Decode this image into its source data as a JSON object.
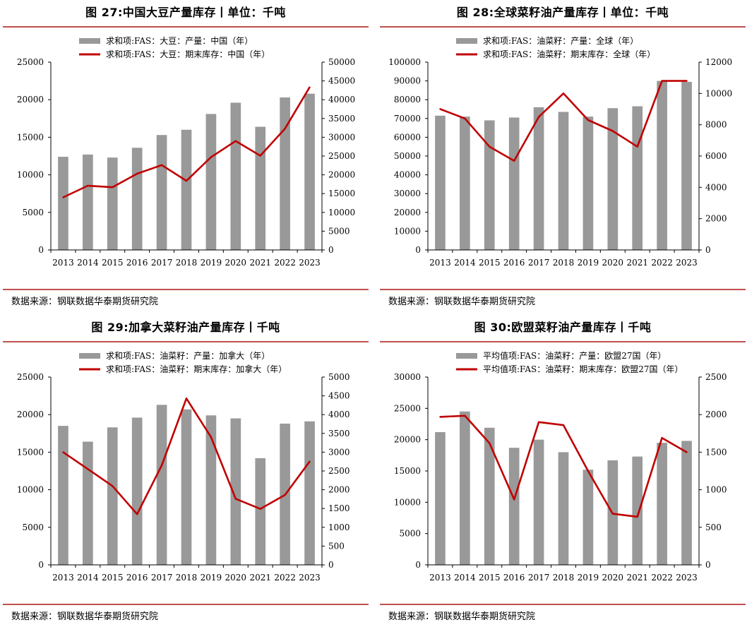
{
  "colors": {
    "bar": "#999999",
    "line": "#c00000",
    "rule": "#c0504d",
    "axis": "#000000"
  },
  "panels": [
    {
      "title": "图 27:中国大豆产量库存丨单位：千吨",
      "source": "数据来源：钢联数据华泰期货研究院",
      "chart_data": {
        "type": "bar+line",
        "categories": [
          "2013",
          "2014",
          "2015",
          "2016",
          "2017",
          "2018",
          "2019",
          "2020",
          "2021",
          "2022",
          "2023"
        ],
        "series": [
          {
            "name": "求和项:FAS：大豆：产量：中国（年）",
            "kind": "bar",
            "axis": "left",
            "values": [
              12400,
              12700,
              12300,
              13600,
              15300,
              16000,
              18100,
              19600,
              16400,
              20300,
              20800
            ]
          },
          {
            "name": "求和项:FAS：大豆：期末库存：中国（年）",
            "kind": "line",
            "axis": "right",
            "values": [
              14000,
              17100,
              16700,
              20300,
              22600,
              18400,
              24700,
              29000,
              25100,
              32300,
              43300
            ]
          }
        ],
        "ylim_left": [
          0,
          25000
        ],
        "ystep_left": 5000,
        "ylim_right": [
          0,
          50000
        ],
        "ystep_right": 5000
      }
    },
    {
      "title": "图 28:全球菜籽油产量库存丨单位：千吨",
      "source": "数据来源：钢联数据华泰期货研究院",
      "chart_data": {
        "type": "bar+line",
        "categories": [
          "2013",
          "2014",
          "2015",
          "2016",
          "2017",
          "2018",
          "2019",
          "2020",
          "2021",
          "2022",
          "2023"
        ],
        "series": [
          {
            "name": "求和项:FAS：油菜籽：产量：全球（年）",
            "kind": "bar",
            "axis": "left",
            "values": [
              71500,
              71000,
              69000,
              70500,
              76000,
              73500,
              71000,
              75500,
              76500,
              90000,
              89500
            ]
          },
          {
            "name": "求和项:FAS：油菜籽：期末库存：全球（年）",
            "kind": "line",
            "axis": "right",
            "values": [
              9000,
              8400,
              6600,
              5700,
              8500,
              10000,
              8300,
              7600,
              6600,
              10800,
              10800
            ]
          }
        ],
        "ylim_left": [
          0,
          100000
        ],
        "ystep_left": 10000,
        "ylim_right": [
          0,
          12000
        ],
        "ystep_right": 2000
      }
    },
    {
      "title": "图 29:加拿大菜籽油产量库存丨千吨",
      "source": "数据来源：钢联数据华泰期货研究院",
      "chart_data": {
        "type": "bar+line",
        "categories": [
          "2013",
          "2014",
          "2015",
          "2016",
          "2017",
          "2018",
          "2019",
          "2020",
          "2021",
          "2022",
          "2023"
        ],
        "series": [
          {
            "name": "求和项:FAS：油菜籽：产量：加拿大（年）",
            "kind": "bar",
            "axis": "left",
            "values": [
              18500,
              16400,
              18300,
              19600,
              21300,
              20700,
              19900,
              19500,
              14200,
              18800,
              19100
            ]
          },
          {
            "name": "求和项:FAS：油菜籽：期末库存：加拿大（年）",
            "kind": "line",
            "axis": "right",
            "values": [
              3000,
              2550,
              2100,
              1350,
              2650,
              4430,
              3400,
              1760,
              1490,
              1860,
              2750
            ]
          }
        ],
        "ylim_left": [
          0,
          25000
        ],
        "ystep_left": 5000,
        "ylim_right": [
          0,
          5000
        ],
        "ystep_right": 500
      }
    },
    {
      "title": "图 30:欧盟菜籽油产量库存丨千吨",
      "source": "数据来源：钢联数据华泰期货研究院",
      "chart_data": {
        "type": "bar+line",
        "categories": [
          "2013",
          "2014",
          "2015",
          "2016",
          "2017",
          "2018",
          "2019",
          "2020",
          "2021",
          "2022",
          "2023"
        ],
        "series": [
          {
            "name": "平均值项:FAS：油菜籽：产量：欧盟27国（年）",
            "kind": "bar",
            "axis": "left",
            "values": [
              21200,
              24500,
              21900,
              18700,
              20000,
              18000,
              15200,
              16700,
              17300,
              19500,
              19800
            ]
          },
          {
            "name": "平均值项:FAS：油菜籽：期末库存：欧盟27国（年）",
            "kind": "line",
            "axis": "right",
            "values": [
              1970,
              1985,
              1620,
              870,
              1900,
              1860,
              1250,
              680,
              640,
              1690,
              1500
            ]
          }
        ],
        "ylim_left": [
          0,
          30000
        ],
        "ystep_left": 5000,
        "ylim_right": [
          0,
          2500
        ],
        "ystep_right": 500
      }
    }
  ]
}
